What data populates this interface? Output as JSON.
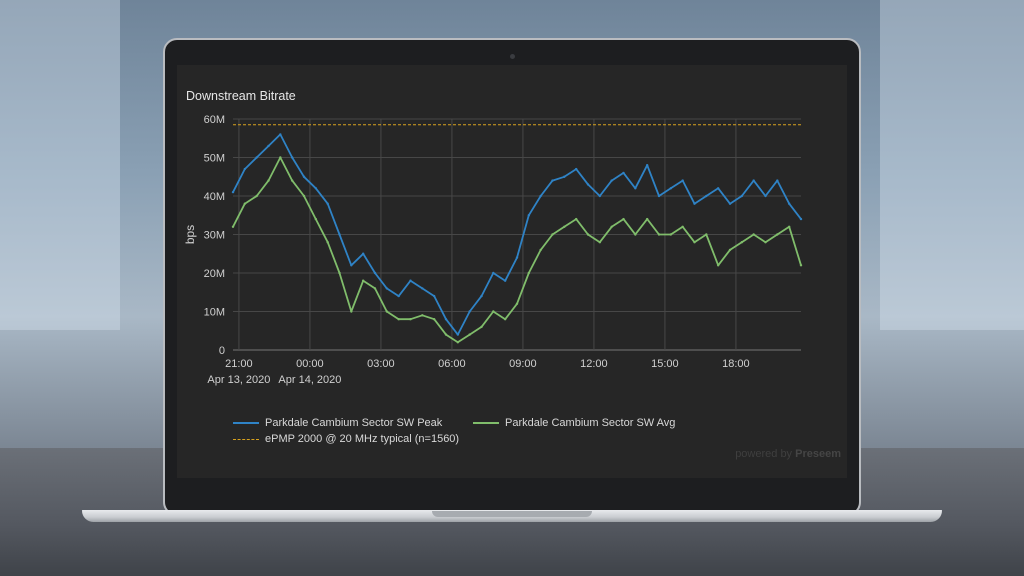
{
  "chart_data": {
    "type": "line",
    "title": "Downstream Bitrate",
    "ylabel": "bps",
    "xlabel": "",
    "ylim": [
      0,
      60000000
    ],
    "y_ticks": [
      {
        "value": 0,
        "label": "0"
      },
      {
        "value": 10000000,
        "label": "10M"
      },
      {
        "value": 20000000,
        "label": "20M"
      },
      {
        "value": 30000000,
        "label": "30M"
      },
      {
        "value": 40000000,
        "label": "40M"
      },
      {
        "value": 50000000,
        "label": "50M"
      },
      {
        "value": 60000000,
        "label": "60M"
      }
    ],
    "x_range_hours": [
      -3.25,
      20.75
    ],
    "x_ticks": [
      {
        "hour": -3,
        "label": "21:00",
        "sublabel": "Apr 13, 2020"
      },
      {
        "hour": 0,
        "label": "00:00",
        "sublabel": "Apr 14, 2020"
      },
      {
        "hour": 3,
        "label": "03:00",
        "sublabel": ""
      },
      {
        "hour": 6,
        "label": "06:00",
        "sublabel": ""
      },
      {
        "hour": 9,
        "label": "09:00",
        "sublabel": ""
      },
      {
        "hour": 12,
        "label": "12:00",
        "sublabel": ""
      },
      {
        "hour": 15,
        "label": "15:00",
        "sublabel": ""
      },
      {
        "hour": 18,
        "label": "18:00",
        "sublabel": ""
      }
    ],
    "grid": true,
    "legend_position": "bottom",
    "x_hours": [
      -3.25,
      -2.75,
      -2.25,
      -1.75,
      -1.25,
      -0.75,
      -0.25,
      0.25,
      0.75,
      1.25,
      1.75,
      2.25,
      2.75,
      3.25,
      3.75,
      4.25,
      4.75,
      5.25,
      5.75,
      6.25,
      6.75,
      7.25,
      7.75,
      8.25,
      8.75,
      9.25,
      9.75,
      10.25,
      10.75,
      11.25,
      11.75,
      12.25,
      12.75,
      13.25,
      13.75,
      14.25,
      14.75,
      15.25,
      15.75,
      16.25,
      16.75,
      17.25,
      17.75,
      18.25,
      18.75,
      19.25,
      19.75,
      20.25,
      20.75
    ],
    "series": [
      {
        "name": "Parkdale Cambium Sector SW Peak",
        "color": "#2f83c6",
        "values": [
          41,
          47,
          50,
          53,
          56,
          50,
          45,
          42,
          38,
          30,
          22,
          25,
          20,
          16,
          14,
          18,
          16,
          14,
          8,
          4,
          10,
          14,
          20,
          18,
          24,
          35,
          40,
          44,
          45,
          47,
          43,
          40,
          44,
          46,
          42,
          48,
          40,
          42,
          44,
          38,
          40,
          42,
          38,
          40,
          44,
          40,
          44,
          38,
          34
        ],
        "unit_multiplier": 1000000
      },
      {
        "name": "Parkdale Cambium Sector SW Avg",
        "color": "#80bd6b",
        "values": [
          32,
          38,
          40,
          44,
          50,
          44,
          40,
          34,
          28,
          20,
          10,
          18,
          16,
          10,
          8,
          8,
          9,
          8,
          4,
          2,
          4,
          6,
          10,
          8,
          12,
          20,
          26,
          30,
          32,
          34,
          30,
          28,
          32,
          34,
          30,
          34,
          30,
          30,
          32,
          28,
          30,
          22,
          26,
          28,
          30,
          28,
          30,
          32,
          22
        ],
        "unit_multiplier": 1000000
      },
      {
        "name": "ePMP 2000 @ 20 MHz typical (n=1560)",
        "color": "#d8a21e",
        "dashed": true,
        "constant": 58500000
      }
    ]
  },
  "footer": {
    "powered_prefix": "powered by",
    "powered_brand": "Preseem"
  }
}
